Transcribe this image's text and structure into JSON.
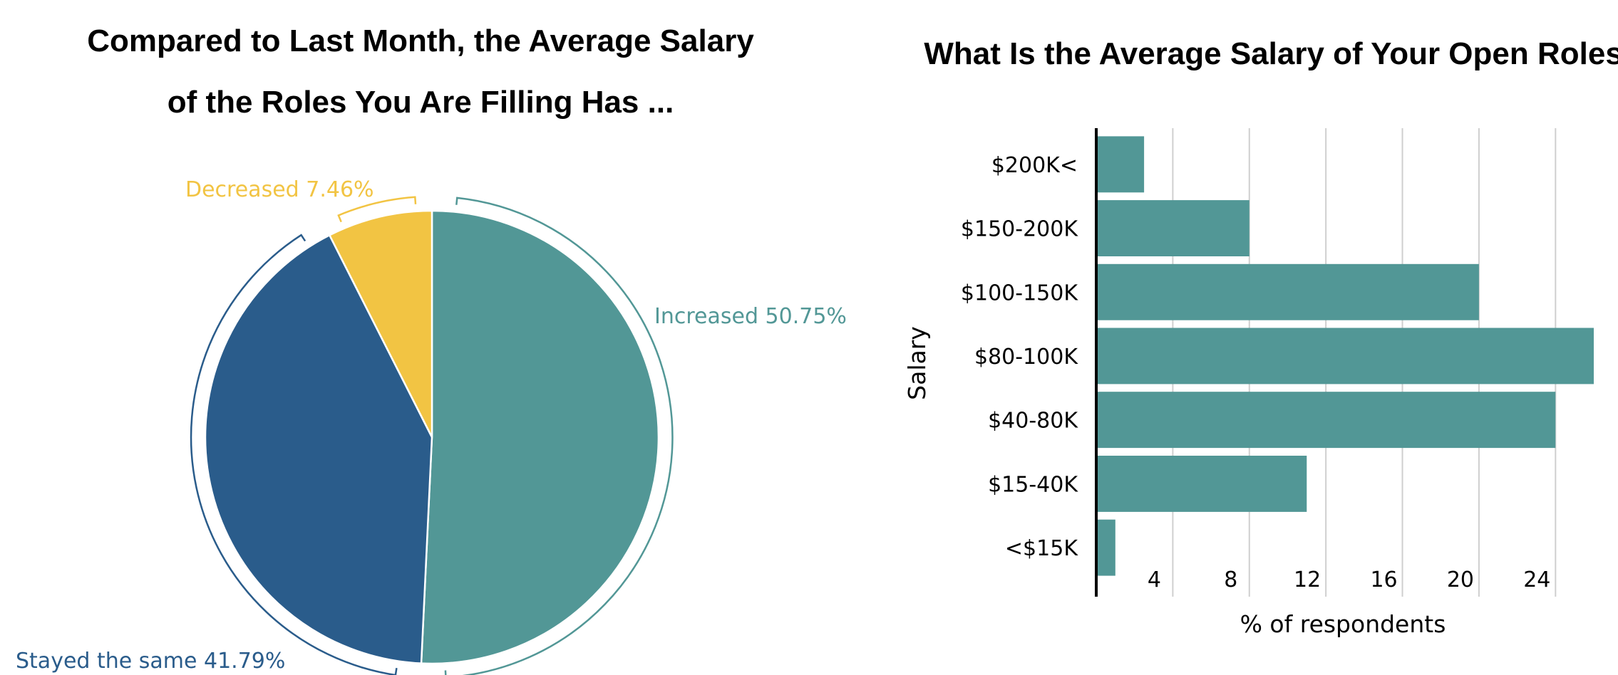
{
  "chart_data": [
    {
      "type": "pie",
      "title_lines": [
        "Compared to Last Month, the Average Salary",
        "of the Roles You Are Filling Has ..."
      ],
      "slices": [
        {
          "label": "Increased 50.75%",
          "name": "Increased",
          "value": 50.75,
          "color": "#529796"
        },
        {
          "label": "Stayed the same 41.79%",
          "name": "Stayed the same",
          "value": 41.79,
          "color": "#2a5c8b"
        },
        {
          "label": "Decreased 7.46%",
          "name": "Decreased",
          "value": 7.46,
          "color": "#f2c443"
        }
      ]
    },
    {
      "type": "bar",
      "orientation": "horizontal",
      "title": "What Is the Average Salary of Your Open Roles?",
      "ylabel": "Salary",
      "xlabel": "% of respondents",
      "categories": [
        "$200K<",
        "$150-200K",
        "$100-150K",
        "$80-100K",
        "$40-80K",
        "$15-40K",
        "<$15K"
      ],
      "values": [
        2.5,
        8.0,
        20.0,
        26.0,
        24.0,
        11.0,
        1.0
      ],
      "xlim": [
        0,
        26
      ],
      "xticks": [
        4,
        8,
        12,
        16,
        20,
        24
      ],
      "grid": true,
      "color": "#529796"
    }
  ]
}
